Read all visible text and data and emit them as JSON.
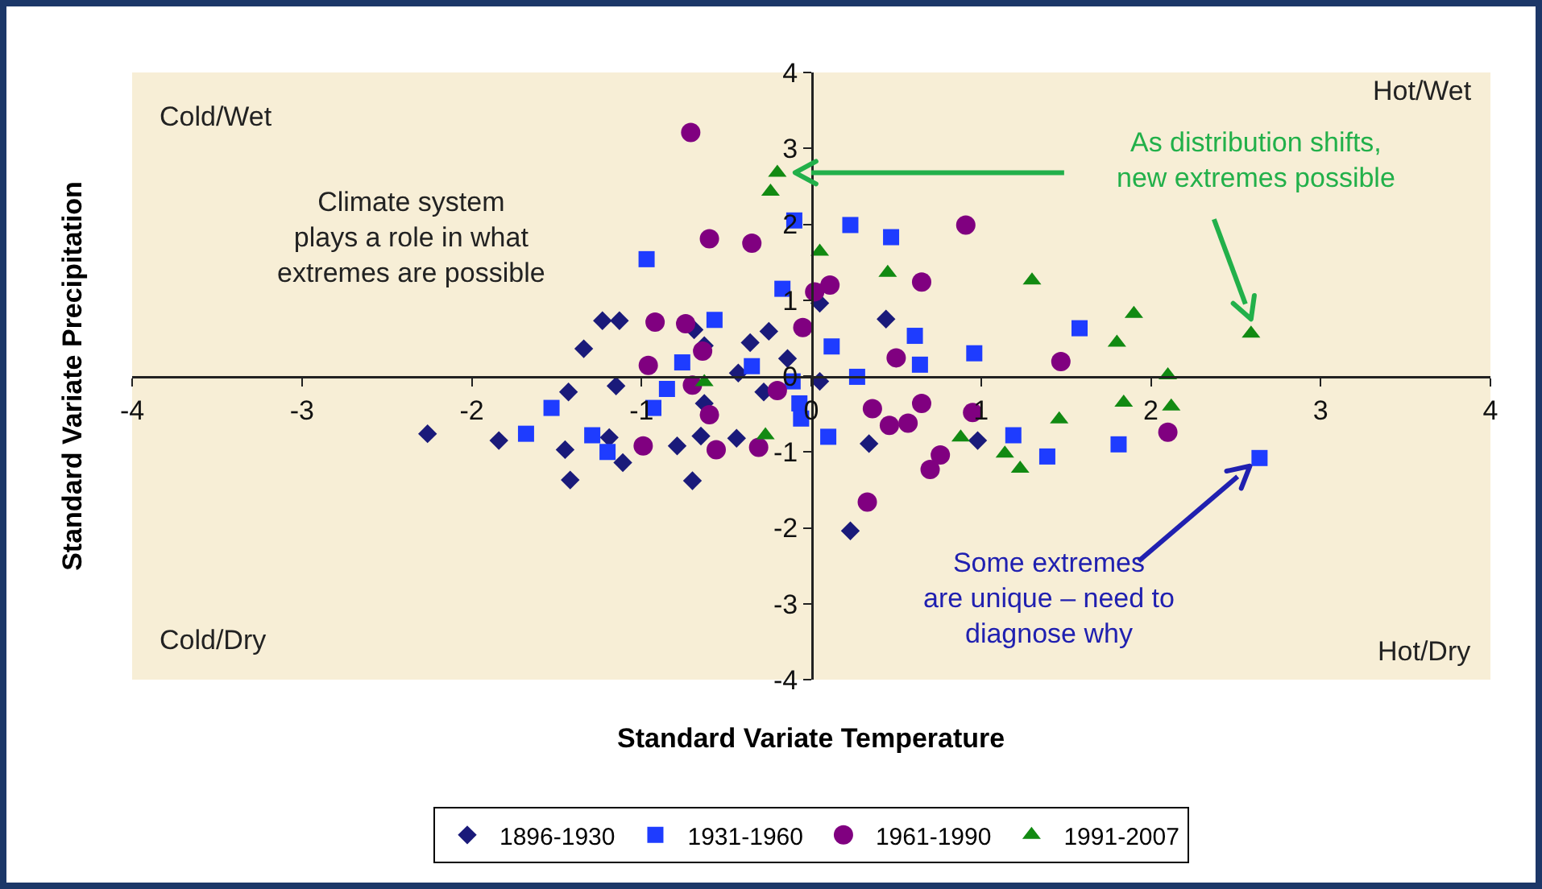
{
  "chart_data": {
    "type": "scatter",
    "xlabel": "Standard Variate Temperature",
    "ylabel": "Standard Variate Precipitation",
    "xlim": [
      -4,
      4
    ],
    "ylim": [
      -4,
      4
    ],
    "xticks": [
      -4,
      -3,
      -2,
      -1,
      0,
      1,
      2,
      3,
      4
    ],
    "yticks": [
      -4,
      -3,
      -2,
      -1,
      0,
      1,
      2,
      3,
      4
    ],
    "grid": false,
    "legend": "bottom",
    "series": [
      {
        "name": "1896-1930",
        "color": "#1a1a7a",
        "marker": "diamond",
        "x": [
          -2.26,
          -1.84,
          -1.34,
          -1.23,
          -1.13,
          -1.43,
          -1.15,
          -1.45,
          -1.42,
          -1.19,
          -1.11,
          -0.79,
          -0.7,
          -0.65,
          -0.69,
          -0.63,
          -0.63,
          -0.44,
          -0.43,
          -0.36,
          -0.25,
          -0.28,
          -0.14,
          0.05,
          0.05,
          0.44,
          0.34,
          0.98,
          0.23
        ],
        "values": [
          -0.76,
          -0.85,
          0.36,
          0.73,
          0.73,
          -0.21,
          -0.13,
          -0.97,
          -1.37,
          -0.81,
          -1.14,
          -0.92,
          -1.38,
          -0.79,
          0.61,
          0.4,
          -0.36,
          -0.82,
          0.04,
          0.44,
          0.59,
          -0.21,
          0.23,
          -0.07,
          0.96,
          0.75,
          -0.89,
          -0.85,
          -2.04
        ]
      },
      {
        "name": "1931-1960",
        "color": "#1e3cff",
        "marker": "square",
        "x": [
          -0.97,
          -0.57,
          -0.76,
          -0.85,
          -0.93,
          -1.53,
          -1.68,
          -1.29,
          -1.2,
          -0.35,
          -0.17,
          0.12,
          -0.11,
          -0.07,
          -0.06,
          0.1,
          -0.1,
          0.23,
          0.47,
          0.61,
          0.64,
          0.96,
          0.27,
          1.58,
          1.19,
          1.39,
          1.81,
          2.64
        ],
        "values": [
          1.54,
          0.74,
          0.18,
          -0.17,
          -0.42,
          -0.42,
          -0.76,
          -0.78,
          -1.0,
          0.13,
          1.15,
          0.39,
          -0.07,
          -0.36,
          -0.56,
          -0.8,
          2.05,
          1.99,
          1.83,
          0.53,
          0.15,
          0.3,
          -0.01,
          0.63,
          -0.78,
          -1.06,
          -0.9,
          -1.08
        ]
      },
      {
        "name": "1961-1990",
        "color": "#800080",
        "marker": "circle",
        "x": [
          -0.6,
          -0.35,
          -0.92,
          -0.74,
          -0.64,
          -0.96,
          -0.7,
          -0.6,
          -0.99,
          -0.56,
          -0.31,
          -0.2,
          -0.05,
          0.02,
          0.11,
          -0.71,
          0.91,
          0.65,
          0.5,
          1.47,
          0.36,
          0.46,
          0.57,
          0.65,
          0.95,
          0.76,
          0.7,
          0.33,
          2.1
        ],
        "values": [
          1.81,
          1.75,
          0.71,
          0.69,
          0.33,
          0.14,
          -0.12,
          -0.51,
          -0.92,
          -0.97,
          -0.94,
          -0.19,
          0.64,
          1.11,
          1.2,
          3.21,
          1.99,
          1.24,
          0.24,
          0.19,
          -0.43,
          -0.65,
          -0.62,
          -0.36,
          -0.48,
          -1.04,
          -1.23,
          -1.66,
          -0.74
        ]
      },
      {
        "name": "1991-2007",
        "color": "#128a12",
        "marker": "triangle",
        "x": [
          -0.2,
          -0.24,
          0.05,
          0.45,
          1.3,
          -0.63,
          -0.27,
          1.9,
          1.8,
          2.59,
          2.1,
          1.84,
          2.12,
          1.46,
          1.14,
          1.23,
          0.88
        ],
        "values": [
          2.68,
          2.43,
          1.64,
          1.36,
          1.26,
          -0.08,
          -0.78,
          0.82,
          0.44,
          0.56,
          0.01,
          -0.35,
          -0.4,
          -0.57,
          -1.02,
          -1.22,
          -0.81
        ]
      }
    ],
    "annotations": [
      "Cold/Wet",
      "Hot/Wet",
      "Cold/Dry",
      "Hot/Dry",
      "Climate system\nplays a role in what\nextremes are possible",
      "As distribution shifts,\nnew extremes possible",
      "Some extremes\nare unique – need to\ndiagnose why"
    ]
  }
}
